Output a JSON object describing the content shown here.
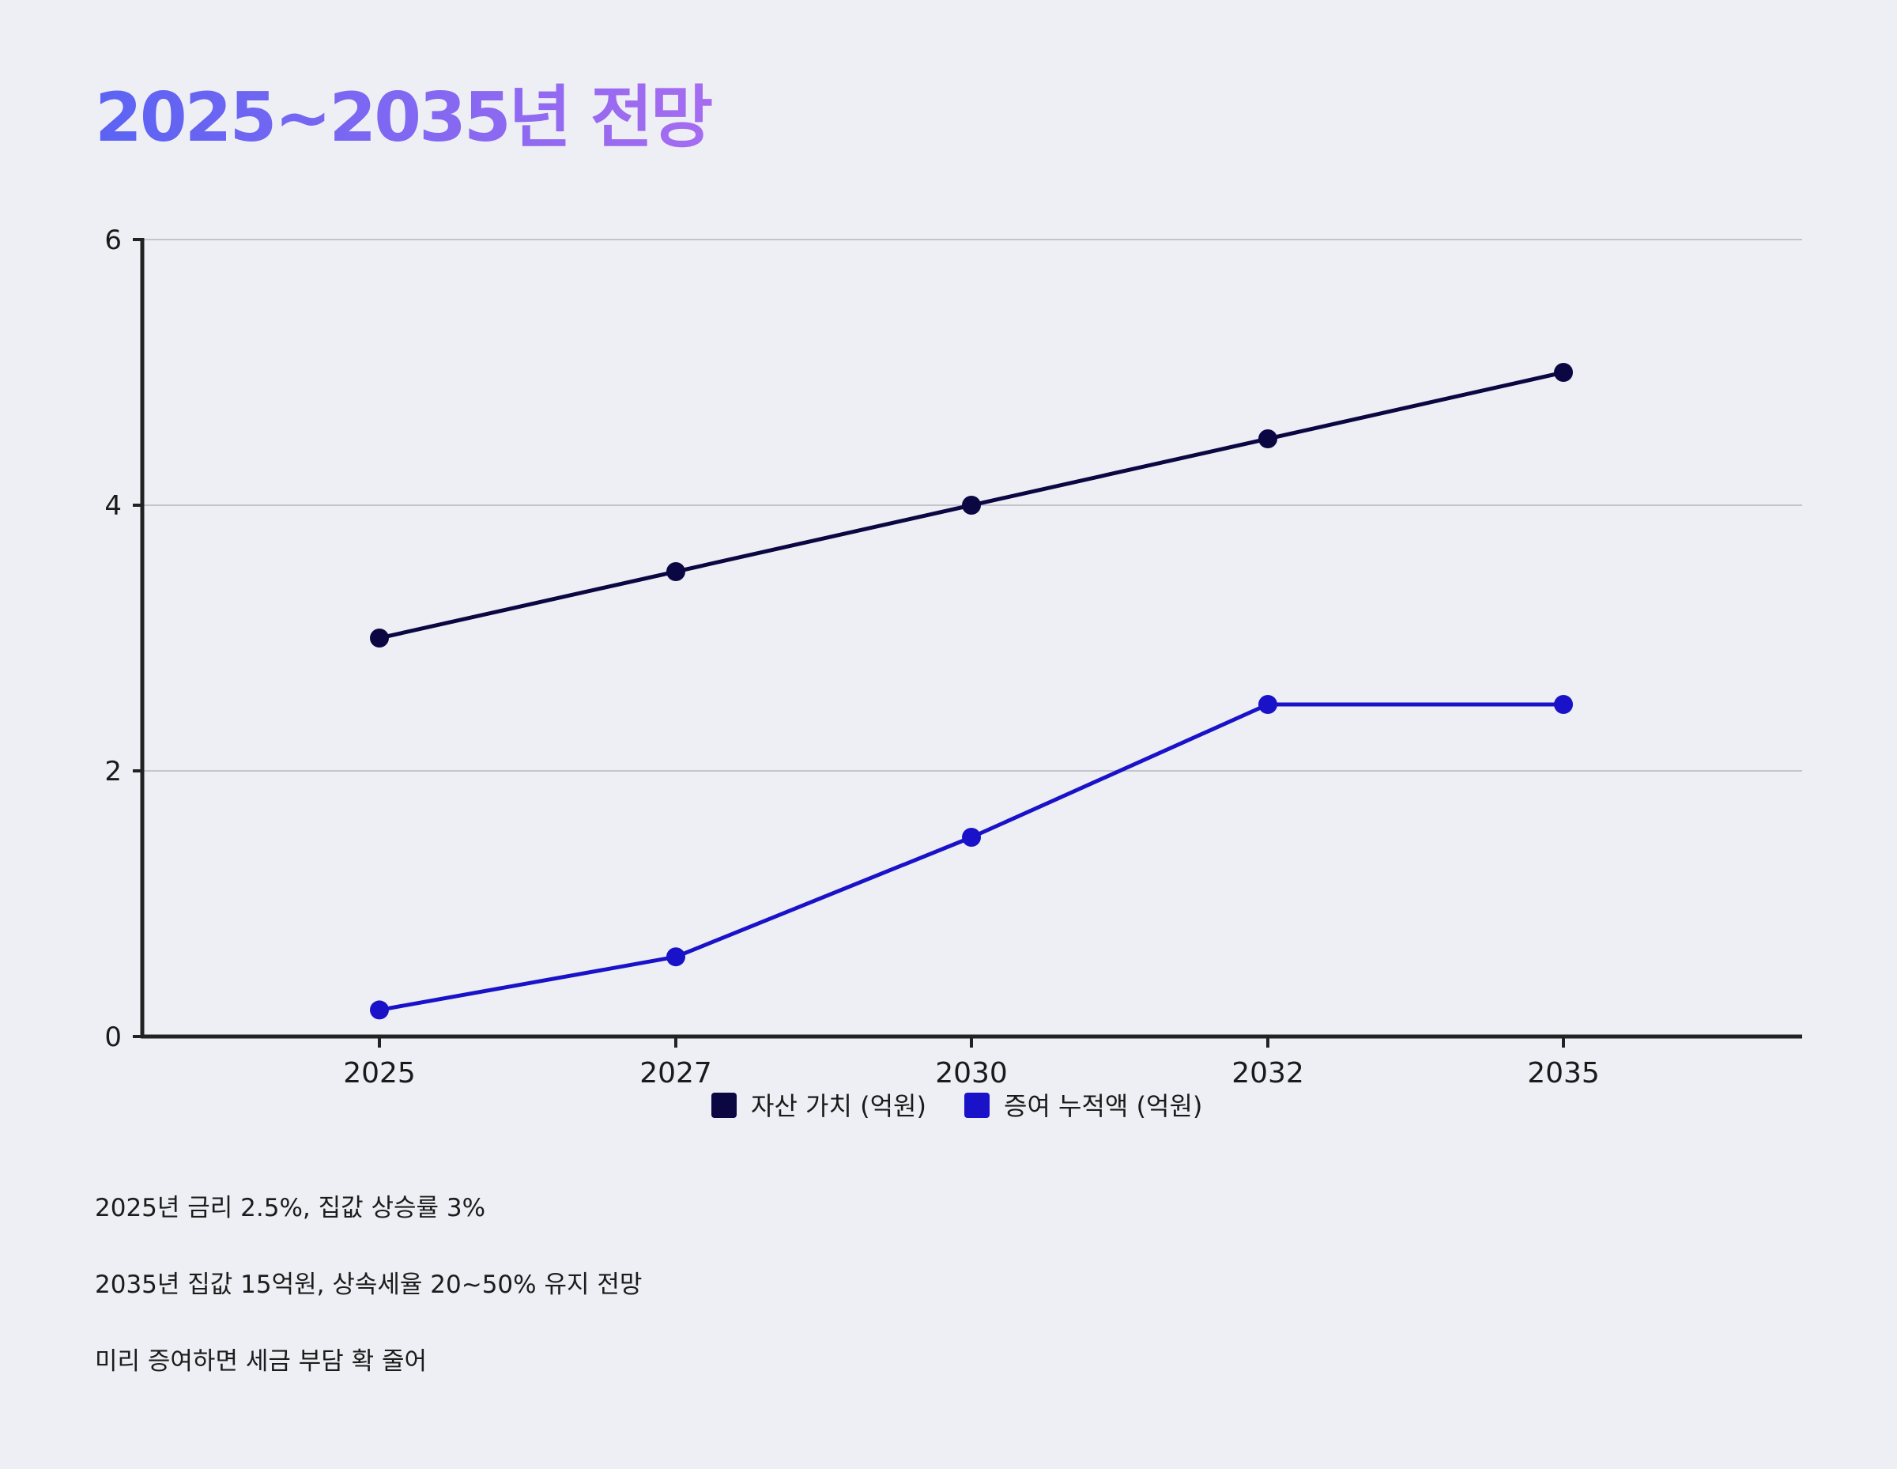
{
  "title": "2025~2035년 전망",
  "colors": {
    "title_gradient_start": "#5b63f3",
    "title_gradient_end": "#a66cf0",
    "series_asset": "#0b0742",
    "series_gift": "#1a12c9",
    "gridline": "#c4c4cb",
    "axis": "#222222",
    "background": "#eeeff4"
  },
  "chart_data": {
    "type": "line",
    "categories": [
      "2025",
      "2027",
      "2030",
      "2032",
      "2035"
    ],
    "series": [
      {
        "name": "자산 가치 (억원)",
        "values": [
          3,
          3.5,
          4,
          4.5,
          5
        ]
      },
      {
        "name": "증여 누적액 (억원)",
        "values": [
          0.2,
          0.6,
          1.5,
          2.5,
          2.5
        ]
      }
    ],
    "yticks": [
      "0",
      "2",
      "4",
      "6"
    ],
    "ylim": [
      0,
      6
    ],
    "xlabel": "",
    "ylabel": "",
    "grid": true,
    "legend_position": "bottom-center"
  },
  "notes": [
    "2025년 금리 2.5%, 집값 상승률 3%",
    "2035년 집값 15억원, 상속세율 20~50% 유지 전망",
    "미리 증여하면 세금 부담 확 줄어"
  ]
}
